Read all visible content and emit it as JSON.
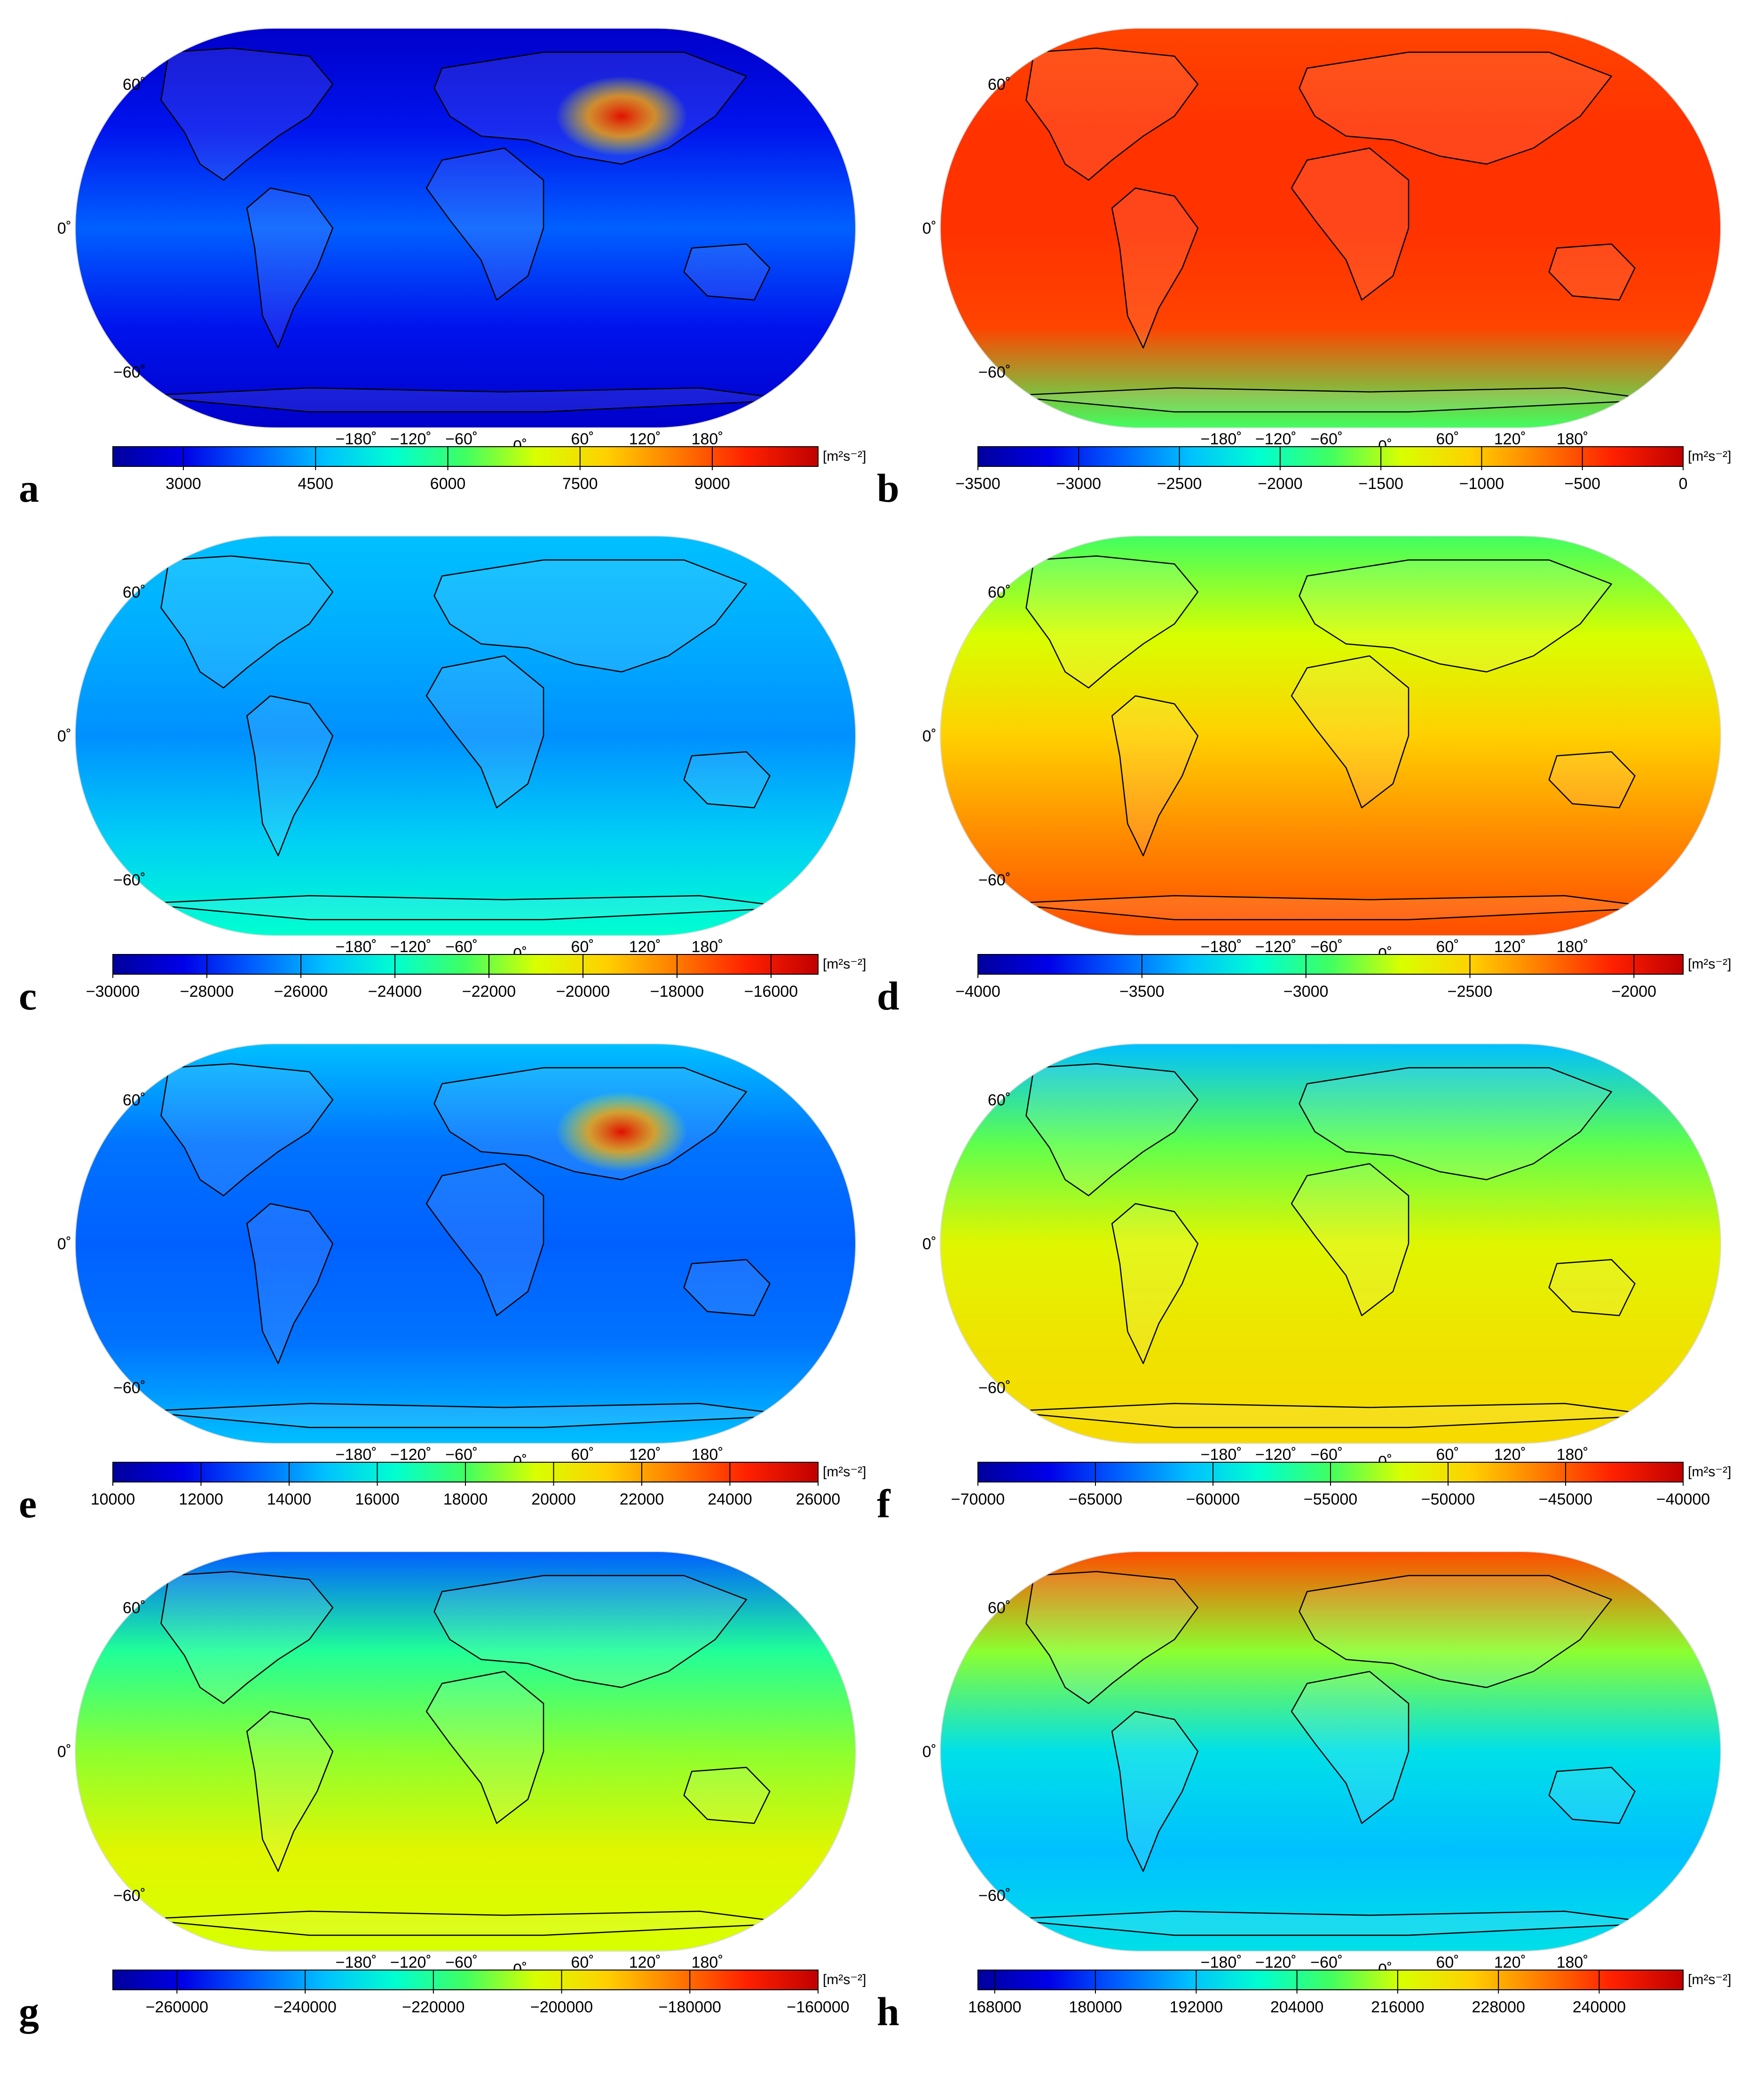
{
  "lat_labels": [
    "60˚",
    "0˚",
    "−60˚"
  ],
  "lon_labels": [
    "−180˚",
    "−120˚",
    "−60˚",
    "0˚",
    "60˚",
    "120˚",
    "180˚"
  ],
  "unit_label": "[m²s⁻²]",
  "palette": [
    "#00009c",
    "#0000e8",
    "#0060ff",
    "#00c0ff",
    "#00ffd0",
    "#40ff60",
    "#d8ff00",
    "#ffd000",
    "#ff7a00",
    "#ff2000",
    "#c00000"
  ],
  "panels": [
    {
      "label": "a",
      "vmin": 2200,
      "vmax": 10200,
      "ticks": [
        "3000",
        "4500",
        "6000",
        "7500",
        "9000"
      ],
      "tick_values": [
        3000,
        4500,
        6000,
        7500,
        9000
      ],
      "fill_stops": [
        0.06,
        0.12,
        0.2,
        0.12,
        0.06
      ],
      "hotspot": "red"
    },
    {
      "label": "b",
      "vmin": -3500,
      "vmax": 0,
      "ticks": [
        "−3500",
        "−3000",
        "−2500",
        "−2000",
        "−1500",
        "−1000",
        "−500",
        "0"
      ],
      "tick_values": [
        -3500,
        -3000,
        -2500,
        -2000,
        -1500,
        -1000,
        -500,
        0
      ],
      "fill_stops": [
        0.86,
        0.88,
        0.88,
        0.86,
        0.5
      ]
    },
    {
      "label": "c",
      "vmin": -30000,
      "vmax": -15000,
      "ticks": [
        "−30000",
        "−28000",
        "−26000",
        "−24000",
        "−22000",
        "−20000",
        "−18000",
        "−16000"
      ],
      "tick_values": [
        -30000,
        -28000,
        -26000,
        -24000,
        -22000,
        -20000,
        -18000,
        -16000
      ],
      "fill_stops": [
        0.3,
        0.28,
        0.25,
        0.32,
        0.4
      ]
    },
    {
      "label": "d",
      "vmin": -4000,
      "vmax": -1850,
      "ticks": [
        "−4000",
        "−3500",
        "−3000",
        "−2500",
        "−2000"
      ],
      "tick_values": [
        -4000,
        -3500,
        -3000,
        -2500,
        -2000
      ],
      "fill_stops": [
        0.5,
        0.6,
        0.7,
        0.78,
        0.85
      ]
    },
    {
      "label": "e",
      "vmin": 10000,
      "vmax": 26000,
      "ticks": [
        "10000",
        "12000",
        "14000",
        "16000",
        "18000",
        "20000",
        "22000",
        "24000",
        "26000"
      ],
      "tick_values": [
        10000,
        12000,
        14000,
        16000,
        18000,
        20000,
        22000,
        24000,
        26000
      ],
      "fill_stops": [
        0.3,
        0.22,
        0.2,
        0.22,
        0.3
      ],
      "hotspot": "red"
    },
    {
      "label": "f",
      "vmin": -70000,
      "vmax": -40000,
      "ticks": [
        "−70000",
        "−65000",
        "−60000",
        "−55000",
        "−50000",
        "−45000",
        "−40000"
      ],
      "tick_values": [
        -70000,
        -65000,
        -60000,
        -55000,
        -50000,
        -45000,
        -40000
      ],
      "fill_stops": [
        0.3,
        0.52,
        0.62,
        0.66,
        0.68
      ]
    },
    {
      "label": "g",
      "vmin": -270000,
      "vmax": -160000,
      "ticks": [
        "−260000",
        "−240000",
        "−220000",
        "−200000",
        "−180000",
        "−160000"
      ],
      "tick_values": [
        -260000,
        -240000,
        -220000,
        -200000,
        -180000,
        -160000
      ],
      "fill_stops": [
        0.2,
        0.45,
        0.55,
        0.62,
        0.6
      ]
    },
    {
      "label": "h",
      "vmin": 166000,
      "vmax": 250000,
      "ticks": [
        "168000",
        "180000",
        "192000",
        "204000",
        "216000",
        "228000",
        "240000"
      ],
      "tick_values": [
        168000,
        180000,
        192000,
        204000,
        216000,
        228000,
        240000
      ],
      "fill_stops": [
        0.85,
        0.55,
        0.35,
        0.3,
        0.35
      ]
    }
  ]
}
